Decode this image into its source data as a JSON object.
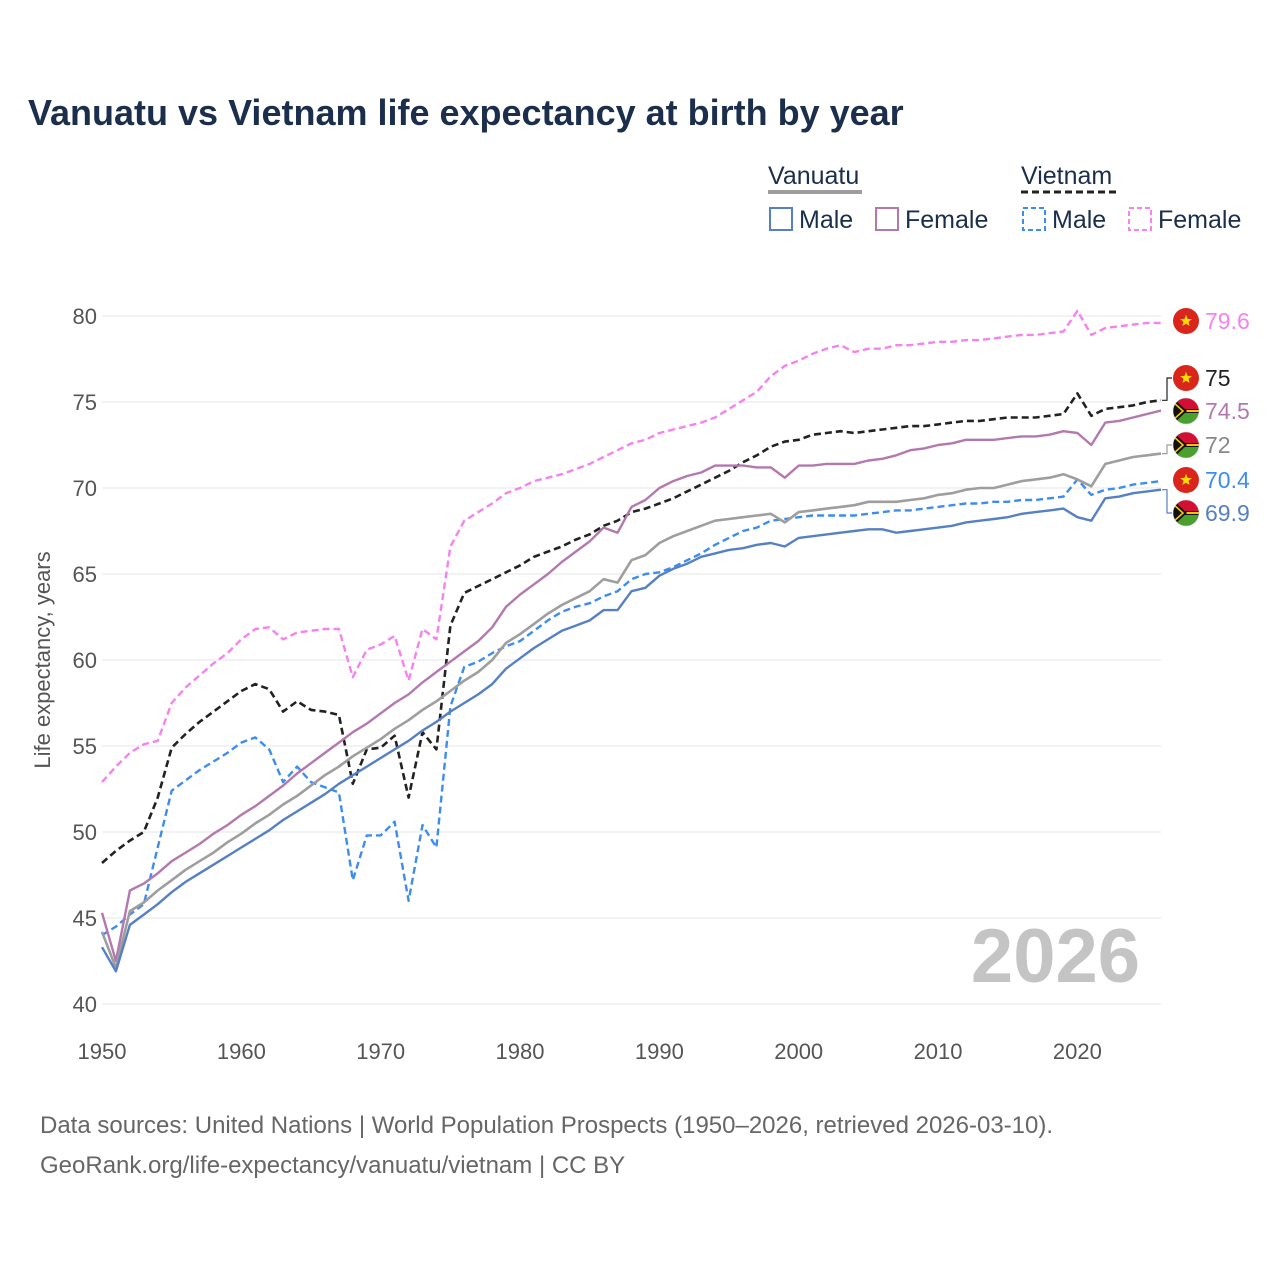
{
  "title": "Vanuatu vs Vietnam life expectancy at birth by year",
  "source_line1": "Data sources: United Nations | World Population Prospects (1950–2026, retrieved 2026-03-10).",
  "source_line2": "GeoRank.org/life-expectancy/vanuatu/vietnam | CC BY",
  "year_watermark": "2026",
  "legend": {
    "country_a": "Vanuatu",
    "country_b": "Vietnam",
    "male_label": "Male",
    "female_label": "Female"
  },
  "colors": {
    "vanuatu_total": "#9e9e9e",
    "vanuatu_male": "#5680c4",
    "vanuatu_female": "#b379ae",
    "vietnam_total": "#222222",
    "vietnam_male": "#3d8df0",
    "vietnam_female": "#f582ee",
    "flag_vietnam_red": "#da251d",
    "flag_vietnam_star": "#ffdd00",
    "flag_vanuatu_green": "#4aa02c",
    "flag_vanuatu_red": "#d21034"
  },
  "chart_data": {
    "type": "line",
    "xlabel": "",
    "ylabel": "Life expectancy, years",
    "xlim": [
      1950,
      2026
    ],
    "ylim": [
      40,
      81.5
    ],
    "x_ticks": [
      1950,
      1960,
      1970,
      1980,
      1990,
      2000,
      2010,
      2020
    ],
    "y_ticks": [
      40,
      45,
      50,
      55,
      60,
      65,
      70,
      75,
      80
    ],
    "x": [
      1950,
      1951,
      1952,
      1953,
      1954,
      1955,
      1956,
      1957,
      1958,
      1959,
      1960,
      1961,
      1962,
      1963,
      1964,
      1965,
      1966,
      1967,
      1968,
      1969,
      1970,
      1971,
      1972,
      1973,
      1974,
      1975,
      1976,
      1977,
      1978,
      1979,
      1980,
      1981,
      1982,
      1983,
      1984,
      1985,
      1986,
      1987,
      1988,
      1989,
      1990,
      1991,
      1992,
      1993,
      1994,
      1995,
      1996,
      1997,
      1998,
      1999,
      2000,
      2001,
      2002,
      2003,
      2004,
      2005,
      2006,
      2007,
      2008,
      2009,
      2010,
      2011,
      2012,
      2013,
      2014,
      2015,
      2016,
      2017,
      2018,
      2019,
      2020,
      2021,
      2022,
      2023,
      2024,
      2025,
      2026
    ],
    "series": [
      {
        "key": "vietnam_female",
        "name": "Vietnam Female",
        "country": "Vietnam",
        "sex": "Female",
        "dash": true,
        "end_label": "79.6",
        "values": [
          52.9,
          53.8,
          54.6,
          55.1,
          55.3,
          57.5,
          58.4,
          59.1,
          59.8,
          60.4,
          61.2,
          61.8,
          61.9,
          61.2,
          61.6,
          61.7,
          61.8,
          61.8,
          59.0,
          60.6,
          60.9,
          61.4,
          58.8,
          61.8,
          61.2,
          66.6,
          68.1,
          68.6,
          69.1,
          69.7,
          70.0,
          70.4,
          70.6,
          70.8,
          71.1,
          71.4,
          71.8,
          72.2,
          72.6,
          72.8,
          73.2,
          73.4,
          73.6,
          73.8,
          74.1,
          74.6,
          75.1,
          75.6,
          76.5,
          77.1,
          77.4,
          77.8,
          78.1,
          78.3,
          77.9,
          78.1,
          78.1,
          78.3,
          78.3,
          78.4,
          78.5,
          78.5,
          78.6,
          78.6,
          78.7,
          78.8,
          78.9,
          78.9,
          79.0,
          79.1,
          80.3,
          78.9,
          79.3,
          79.4,
          79.5,
          79.6,
          79.6
        ]
      },
      {
        "key": "vietnam_total",
        "name": "Vietnam",
        "country": "Vietnam",
        "sex": "Total",
        "dash": true,
        "end_label": "75",
        "values": [
          48.2,
          48.9,
          49.5,
          50.0,
          52.0,
          54.9,
          55.7,
          56.4,
          57.0,
          57.6,
          58.2,
          58.6,
          58.3,
          57.0,
          57.6,
          57.1,
          57.0,
          56.8,
          52.8,
          54.8,
          54.9,
          55.6,
          52.0,
          55.8,
          54.8,
          62.0,
          63.9,
          64.3,
          64.7,
          65.1,
          65.5,
          66.0,
          66.3,
          66.6,
          67.0,
          67.3,
          67.8,
          68.1,
          68.6,
          68.8,
          69.1,
          69.4,
          69.8,
          70.2,
          70.6,
          71.0,
          71.5,
          71.9,
          72.4,
          72.7,
          72.8,
          73.1,
          73.2,
          73.3,
          73.2,
          73.3,
          73.4,
          73.5,
          73.6,
          73.6,
          73.7,
          73.8,
          73.9,
          73.9,
          74.0,
          74.1,
          74.1,
          74.1,
          74.2,
          74.3,
          75.5,
          74.2,
          74.6,
          74.7,
          74.8,
          75.0,
          75.1
        ]
      },
      {
        "key": "vietnam_male",
        "name": "Vietnam Male",
        "country": "Vietnam",
        "sex": "Male",
        "dash": true,
        "end_label": "70.4",
        "values": [
          44.0,
          44.5,
          45.2,
          45.8,
          49.1,
          52.4,
          53.0,
          53.6,
          54.1,
          54.6,
          55.2,
          55.5,
          54.8,
          52.9,
          53.8,
          52.9,
          52.6,
          52.3,
          47.2,
          49.8,
          49.8,
          50.6,
          46.0,
          50.4,
          49.1,
          57.3,
          59.6,
          59.9,
          60.4,
          60.8,
          61.1,
          61.7,
          62.3,
          62.8,
          63.1,
          63.3,
          63.7,
          64.0,
          64.7,
          65.0,
          65.1,
          65.4,
          65.8,
          66.2,
          66.7,
          67.1,
          67.5,
          67.7,
          68.1,
          68.2,
          68.3,
          68.4,
          68.4,
          68.4,
          68.4,
          68.5,
          68.6,
          68.7,
          68.7,
          68.8,
          68.9,
          69.0,
          69.1,
          69.1,
          69.2,
          69.2,
          69.3,
          69.3,
          69.4,
          69.5,
          70.5,
          69.6,
          69.9,
          70.0,
          70.2,
          70.3,
          70.4
        ]
      },
      {
        "key": "vanuatu_female",
        "name": "Vanuatu Female",
        "country": "Vanuatu",
        "sex": "Female",
        "dash": false,
        "end_label": "74.5",
        "values": [
          45.3,
          42.5,
          46.6,
          47.0,
          47.6,
          48.3,
          48.8,
          49.3,
          49.9,
          50.4,
          51.0,
          51.5,
          52.1,
          52.7,
          53.4,
          54.0,
          54.6,
          55.2,
          55.8,
          56.3,
          56.9,
          57.5,
          58.0,
          58.7,
          59.3,
          59.9,
          60.5,
          61.1,
          61.9,
          63.1,
          63.8,
          64.4,
          65.0,
          65.7,
          66.3,
          66.9,
          67.7,
          67.4,
          68.9,
          69.3,
          70.0,
          70.4,
          70.7,
          70.9,
          71.3,
          71.3,
          71.3,
          71.2,
          71.2,
          70.6,
          71.3,
          71.3,
          71.4,
          71.4,
          71.4,
          71.6,
          71.7,
          71.9,
          72.2,
          72.3,
          72.5,
          72.6,
          72.8,
          72.8,
          72.8,
          72.9,
          73.0,
          73.0,
          73.1,
          73.3,
          73.2,
          72.5,
          73.8,
          73.9,
          74.1,
          74.3,
          74.5
        ]
      },
      {
        "key": "vanuatu_total",
        "name": "Vanuatu",
        "country": "Vanuatu",
        "sex": "Total",
        "dash": false,
        "end_label": "72",
        "values": [
          44.2,
          42.1,
          45.4,
          45.9,
          46.6,
          47.2,
          47.8,
          48.3,
          48.8,
          49.4,
          49.9,
          50.5,
          51.0,
          51.6,
          52.1,
          52.7,
          53.3,
          53.8,
          54.4,
          54.9,
          55.4,
          56.0,
          56.5,
          57.1,
          57.6,
          58.2,
          58.8,
          59.3,
          60.0,
          61.0,
          61.5,
          62.1,
          62.7,
          63.2,
          63.6,
          64.0,
          64.7,
          64.5,
          65.8,
          66.1,
          66.8,
          67.2,
          67.5,
          67.8,
          68.1,
          68.2,
          68.3,
          68.4,
          68.5,
          68.0,
          68.6,
          68.7,
          68.8,
          68.9,
          69.0,
          69.2,
          69.2,
          69.2,
          69.3,
          69.4,
          69.6,
          69.7,
          69.9,
          70.0,
          70.0,
          70.2,
          70.4,
          70.5,
          70.6,
          70.8,
          70.5,
          70.1,
          71.4,
          71.6,
          71.8,
          71.9,
          72.0
        ]
      },
      {
        "key": "vanuatu_male",
        "name": "Vanuatu Male",
        "country": "Vanuatu",
        "sex": "Male",
        "dash": false,
        "end_label": "69.9",
        "values": [
          43.3,
          41.9,
          44.6,
          45.2,
          45.8,
          46.5,
          47.1,
          47.6,
          48.1,
          48.6,
          49.1,
          49.6,
          50.1,
          50.7,
          51.2,
          51.7,
          52.2,
          52.8,
          53.3,
          53.8,
          54.3,
          54.8,
          55.3,
          55.9,
          56.4,
          57.0,
          57.5,
          58.0,
          58.6,
          59.5,
          60.1,
          60.7,
          61.2,
          61.7,
          62.0,
          62.3,
          62.9,
          62.9,
          64.0,
          64.2,
          64.9,
          65.3,
          65.6,
          66.0,
          66.2,
          66.4,
          66.5,
          66.7,
          66.8,
          66.6,
          67.1,
          67.2,
          67.3,
          67.4,
          67.5,
          67.6,
          67.6,
          67.4,
          67.5,
          67.6,
          67.7,
          67.8,
          68.0,
          68.1,
          68.2,
          68.3,
          68.5,
          68.6,
          68.7,
          68.8,
          68.3,
          68.1,
          69.4,
          69.5,
          69.7,
          69.8,
          69.9
        ]
      }
    ]
  }
}
